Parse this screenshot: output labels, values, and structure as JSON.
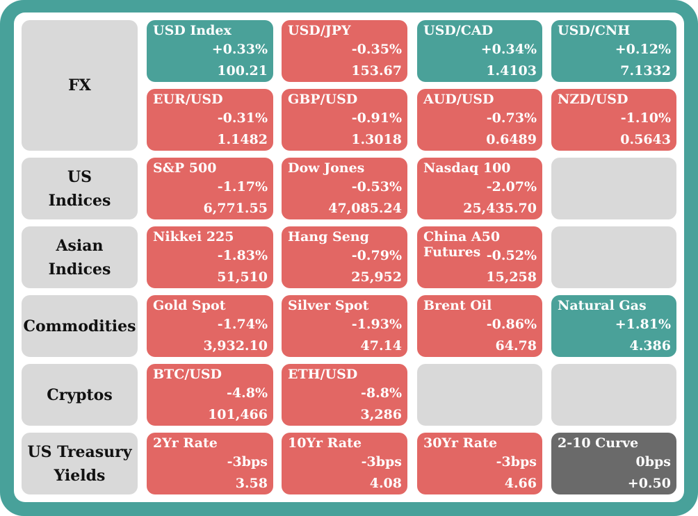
{
  "rows": [
    {
      "label": "FX"
    },
    {
      "label": "US\nIndices"
    },
    {
      "label": "Asian\nIndices"
    },
    {
      "label": "Commodities"
    },
    {
      "label": "Cryptos"
    },
    {
      "label": "US Treasury\nYields"
    }
  ],
  "tiles": {
    "usd_index": {
      "name": "USD Index",
      "change": "+0.33%",
      "value": "100.21"
    },
    "usd_jpy": {
      "name": "USD/JPY",
      "change": "-0.35%",
      "value": "153.67"
    },
    "usd_cad": {
      "name": "USD/CAD",
      "change": "+0.34%",
      "value": "1.4103"
    },
    "usd_cnh": {
      "name": "USD/CNH",
      "change": "+0.12%",
      "value": "7.1332"
    },
    "eur_usd": {
      "name": "EUR/USD",
      "change": "-0.31%",
      "value": "1.1482"
    },
    "gbp_usd": {
      "name": "GBP/USD",
      "change": "-0.91%",
      "value": "1.3018"
    },
    "aud_usd": {
      "name": "AUD/USD",
      "change": "-0.73%",
      "value": "0.6489"
    },
    "nzd_usd": {
      "name": "NZD/USD",
      "change": "-1.10%",
      "value": "0.5643"
    },
    "sp500": {
      "name": "S&P 500",
      "change": "-1.17%",
      "value": "6,771.55"
    },
    "dow": {
      "name": "Dow Jones",
      "change": "-0.53%",
      "value": "47,085.24"
    },
    "nasdaq": {
      "name": "Nasdaq 100",
      "change": "-2.07%",
      "value": "25,435.70"
    },
    "nikkei": {
      "name": "Nikkei 225",
      "change": "-1.83%",
      "value": "51,510"
    },
    "hang_seng": {
      "name": "Hang Seng",
      "change": "-0.79%",
      "value": "25,952"
    },
    "china_a50": {
      "name": "China A50\nFutures",
      "change": "-0.52%",
      "value": "15,258"
    },
    "gold": {
      "name": "Gold Spot",
      "change": "-1.74%",
      "value": "3,932.10"
    },
    "silver": {
      "name": "Silver Spot",
      "change": "-1.93%",
      "value": "47.14"
    },
    "brent": {
      "name": "Brent Oil",
      "change": "-0.86%",
      "value": "64.78"
    },
    "natgas": {
      "name": "Natural Gas",
      "change": "+1.81%",
      "value": "4.386"
    },
    "btc": {
      "name": "BTC/USD",
      "change": "-4.8%",
      "value": "101,466"
    },
    "eth": {
      "name": "ETH/USD",
      "change": "-8.8%",
      "value": "3,286"
    },
    "rate_2yr": {
      "name": "2Yr Rate",
      "change": "-3bps",
      "value": "3.58"
    },
    "rate_10yr": {
      "name": "10Yr Rate",
      "change": "-3bps",
      "value": "4.08"
    },
    "rate_30yr": {
      "name": "30Yr Rate",
      "change": "-3bps",
      "value": "4.66"
    },
    "curve_2_10": {
      "name": "2-10 Curve",
      "change": "0bps",
      "value": "+0.50"
    }
  },
  "colors": {
    "up": "#4aa199",
    "down": "#e26764",
    "flat": "#6a6a6a",
    "empty": "#d9d9d9",
    "frame": "#48a19a"
  }
}
